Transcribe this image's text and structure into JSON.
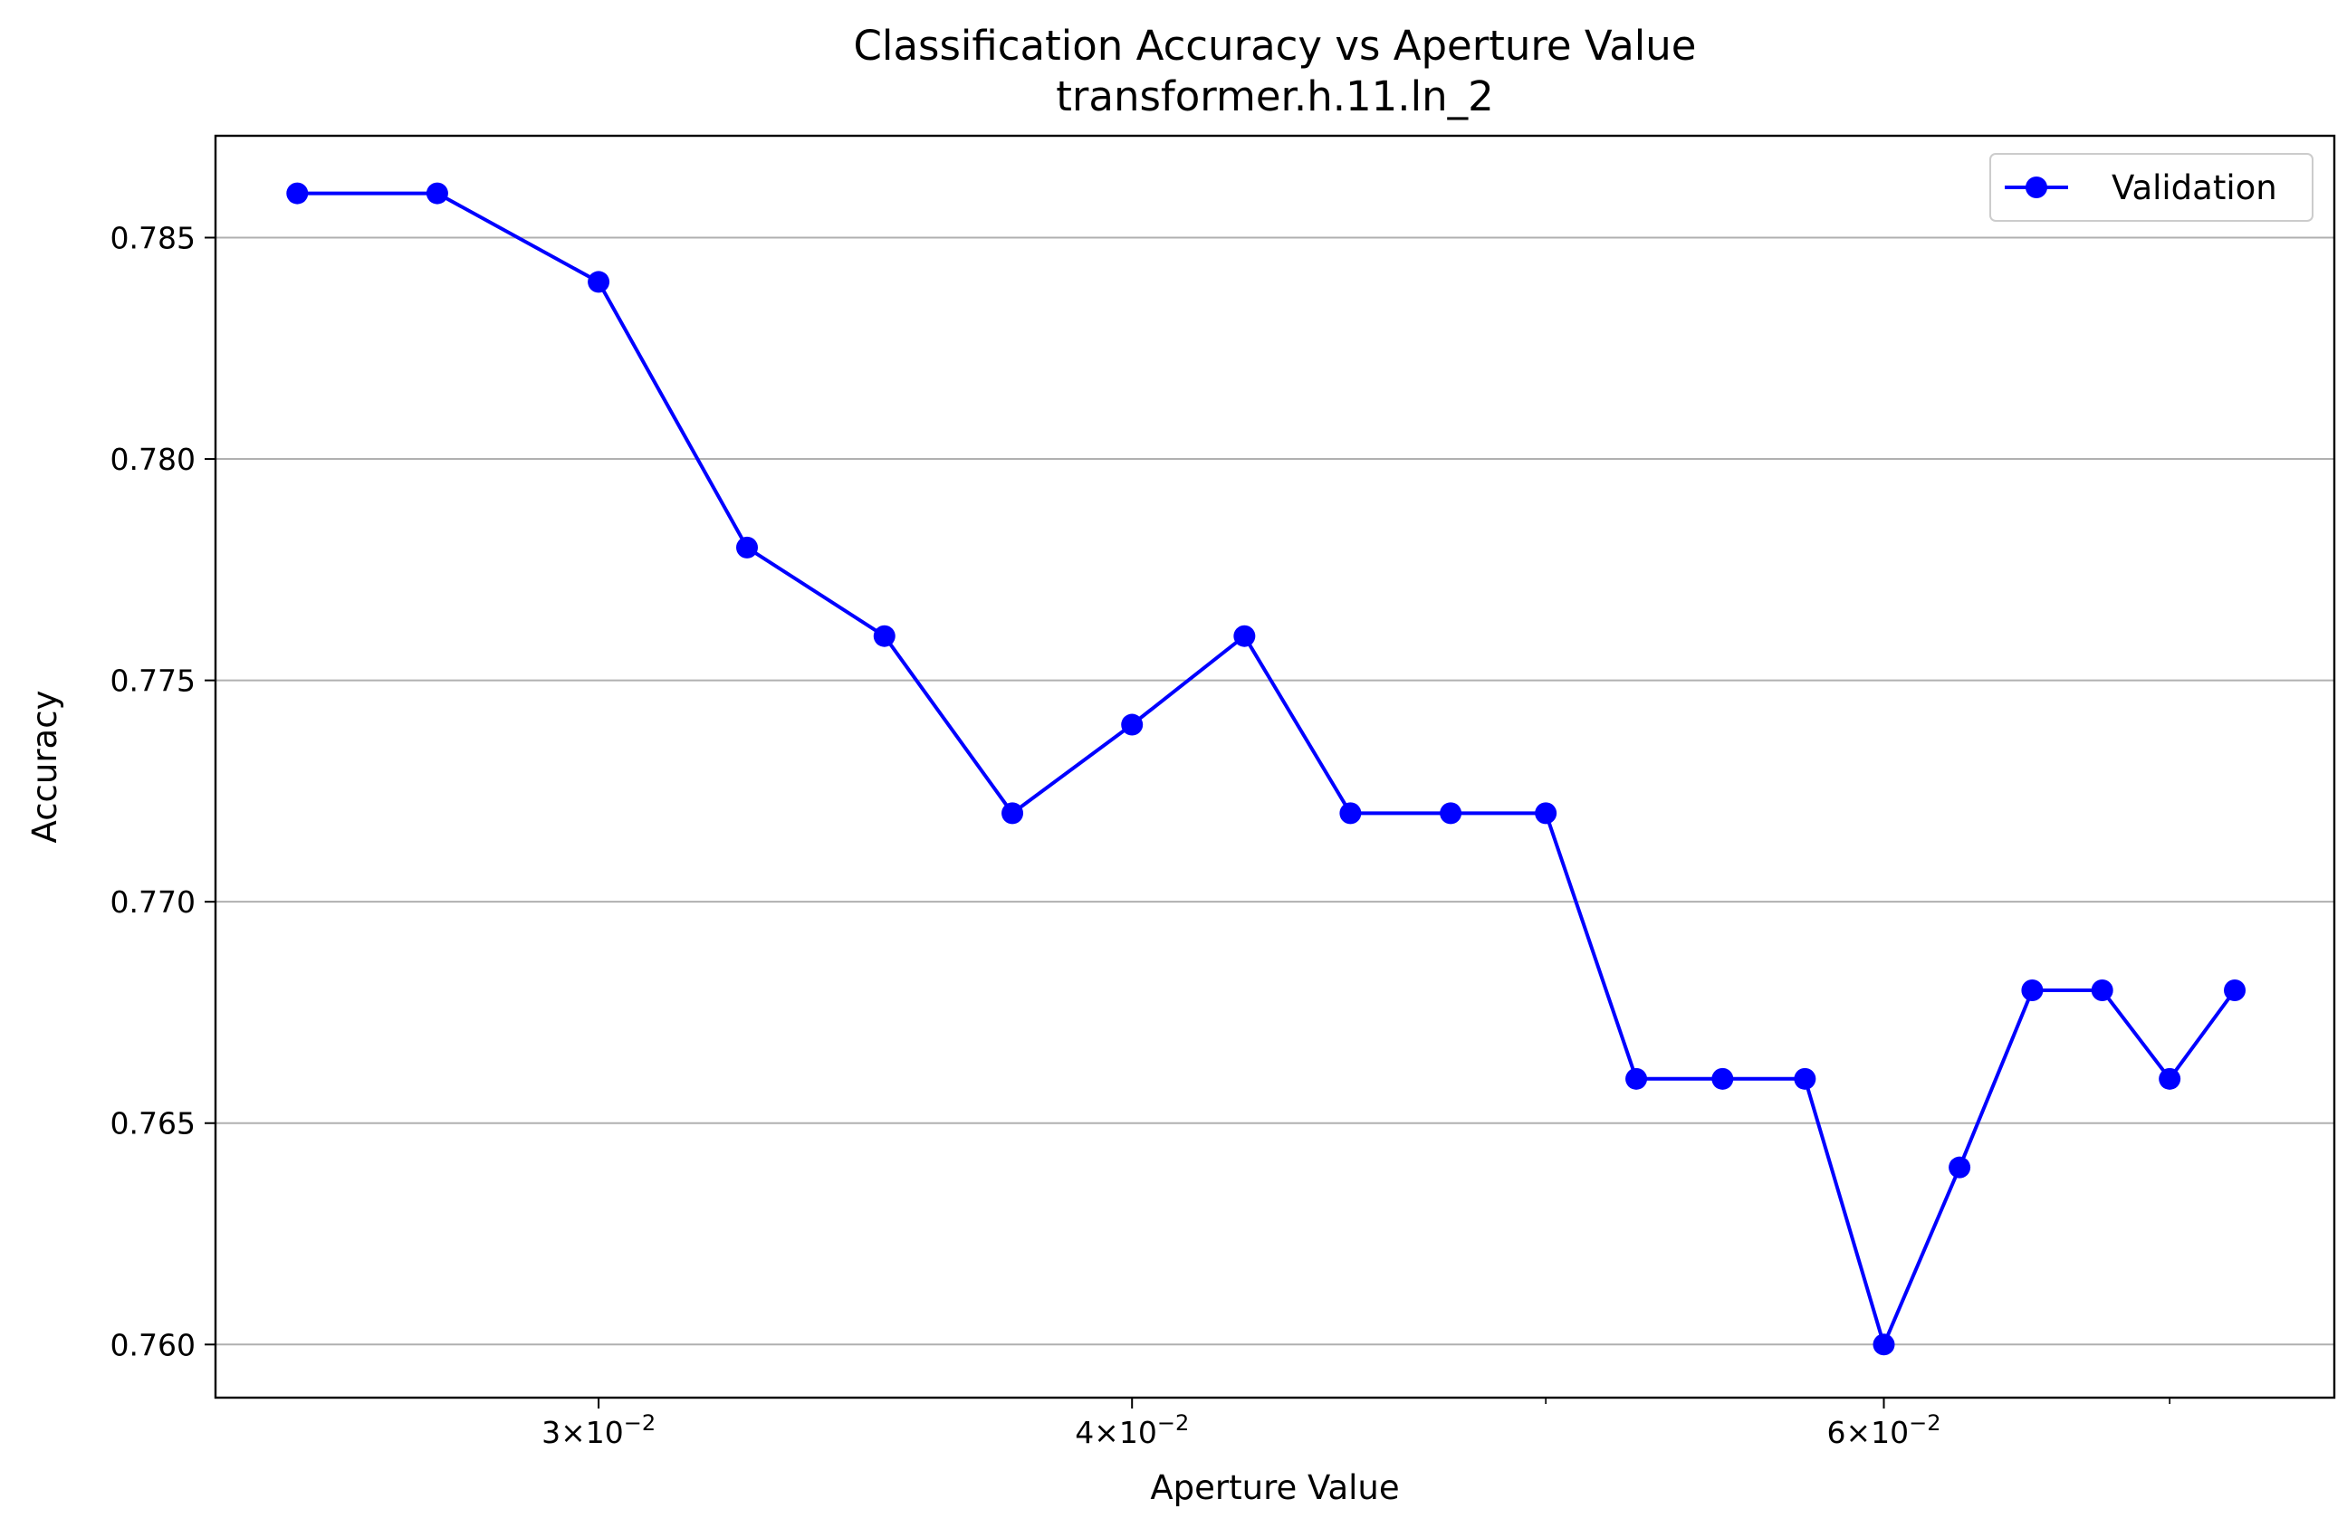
{
  "chart_data": {
    "type": "line",
    "title": "Classification Accuracy vs Aperture Value",
    "subtitle": "transformer.h.11.ln_2",
    "xlabel": "Aperture Value",
    "ylabel": "Accuracy",
    "xscale": "log",
    "ylim": [
      0.7588,
      0.7873
    ],
    "xlim": [
      0.0244,
      0.0765
    ],
    "grid": "y-major",
    "legend_position": "top-right",
    "colors": {
      "series": "#0000ff",
      "grid": "#b0b0b0"
    },
    "y_ticks": [
      "0.760",
      "0.765",
      "0.770",
      "0.775",
      "0.780",
      "0.785"
    ],
    "x_ticks": [
      {
        "base": "3",
        "exp": "−2",
        "value": 0.03
      },
      {
        "base": "4",
        "exp": "−2",
        "value": 0.04
      },
      {
        "base": "6",
        "exp": "−2",
        "value": 0.06
      }
    ],
    "x_minor_ticks": [
      0.05,
      0.07
    ],
    "series": [
      {
        "name": "Validation",
        "marker": "circle",
        "x": [
          0.0255,
          0.0275,
          0.03,
          0.0325,
          0.035,
          0.0375,
          0.04,
          0.0425,
          0.045,
          0.0475,
          0.05,
          0.0525,
          0.055,
          0.0575,
          0.06,
          0.0625,
          0.065,
          0.0675,
          0.07,
          0.0725
        ],
        "values": [
          0.786,
          0.786,
          0.784,
          0.778,
          0.776,
          0.772,
          0.774,
          0.776,
          0.772,
          0.772,
          0.772,
          0.766,
          0.766,
          0.766,
          0.76,
          0.764,
          0.768,
          0.768,
          0.766,
          0.768
        ]
      }
    ]
  }
}
